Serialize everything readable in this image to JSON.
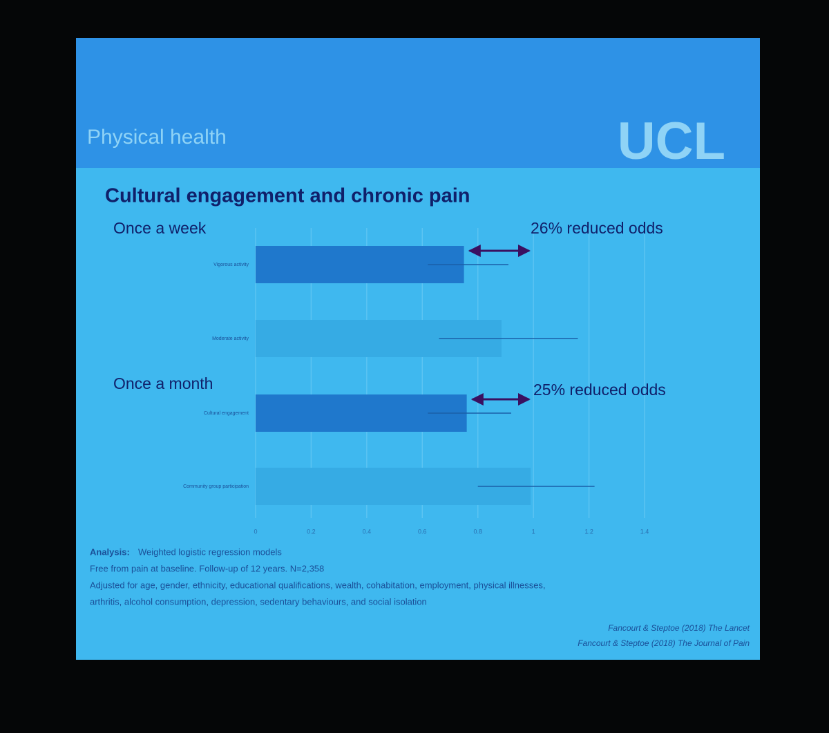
{
  "header": {
    "title": "Physical health",
    "logo": "UCL"
  },
  "chart_data": {
    "type": "hbar",
    "title": "Cultural engagement and chronic pain",
    "categories": [
      "Vigorous activity",
      "Moderate activity",
      "Cultural engagement",
      "Community group participation"
    ],
    "values": [
      0.75,
      0.885,
      0.76,
      0.99
    ],
    "ci_low": [
      0.62,
      0.66,
      0.62,
      0.8
    ],
    "ci_high": [
      0.91,
      1.16,
      0.92,
      1.22
    ],
    "colors": [
      "#1f78cc",
      "#36abe4",
      "#1f78cc",
      "#36abe4"
    ],
    "xlim": [
      0,
      1.4
    ],
    "xticks": [
      0,
      0.2,
      0.4,
      0.6,
      0.8,
      1,
      1.2,
      1.4
    ],
    "grid": true,
    "annotations": [
      "Once a week",
      "26% reduced odds",
      "Once a month",
      "25% reduced odds"
    ]
  },
  "notes": {
    "analysis_label": "Analysis:",
    "analysis": "Weighted logistic regression models",
    "lines": [
      "Free from pain at baseline. Follow-up of 12 years. N=2,358",
      "Adjusted for age, gender, ethnicity, educational qualifications, wealth, cohabitation, employment, physical illnesses,",
      "arthritis, alcohol consumption, depression, sedentary behaviours, and social isolation"
    ],
    "citations": [
      "Fancourt & Steptoe (2018) The Lancet",
      "Fancourt & Steptoe (2018) The Journal of Pain"
    ]
  }
}
